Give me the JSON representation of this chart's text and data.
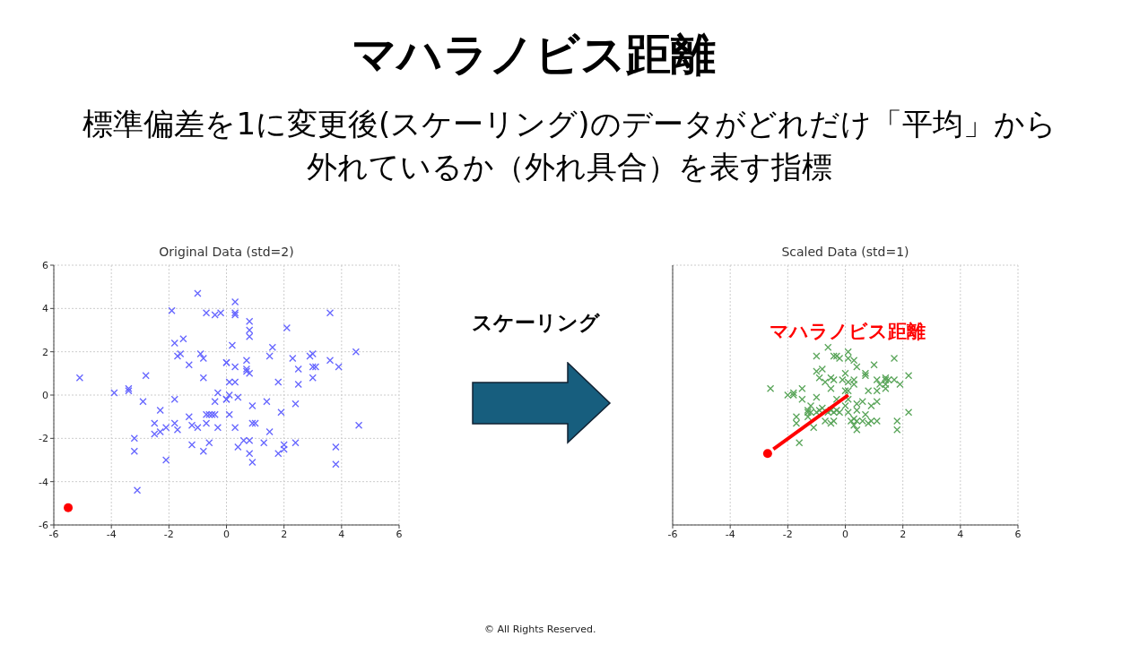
{
  "chart_data": [
    {
      "type": "other",
      "title": "マハラノビス距離",
      "subtitle": "標準偏差を1に変更後(スケーリング)のデータがどれだけ「平均」から外れているか（外れ具合）を表す指標",
      "annotations": [
        "スケーリング",
        "© All Rights Reserved."
      ]
    },
    {
      "type": "scatter",
      "title": "Original Data (std=2)",
      "xlim": [
        -6,
        6
      ],
      "ylim": [
        -6,
        6
      ],
      "xticks": [
        -6,
        -4,
        -2,
        0,
        2,
        4,
        6
      ],
      "yticks": [
        -6,
        -4,
        -2,
        0,
        2,
        4,
        6
      ],
      "grid": true,
      "series": [
        {
          "type": "scatter",
          "marker": "cross",
          "color": "#6666ff",
          "x": [
            -5.1,
            -3.9,
            -3.4,
            -3.4,
            -2.8,
            -2.9,
            -2.3,
            -2.5,
            -2.3,
            -2.5,
            -2.1,
            -3.2,
            -3.2,
            -2.1,
            -3.1,
            -1.0,
            -1.9,
            -0.7,
            -0.4,
            -0.2,
            -1.8,
            -1.5,
            -1.7,
            -1.6,
            -0.9,
            -0.8,
            -1.3,
            -0.8,
            0.0,
            -0.3,
            -0.4,
            0.0,
            -1.8,
            -1.3,
            -0.7,
            -0.6,
            -0.5,
            -0.4,
            -0.7,
            -1.8,
            -1.7,
            -1.2,
            -1.0,
            -0.3,
            -1.2,
            -0.6,
            -0.8,
            0.3,
            0.3,
            0.3,
            3.6,
            0.8,
            2.1,
            0.8,
            0.8,
            0.2,
            1.6,
            1.5,
            0.0,
            0.3,
            0.7,
            0.7,
            0.7,
            0.8,
            2.3,
            2.9,
            3.0,
            3.0,
            3.1,
            3.6,
            3.9,
            4.5,
            2.5,
            3.0,
            2.5,
            1.8,
            0.1,
            0.3,
            0.1,
            0.4,
            0.0,
            1.4,
            2.4,
            0.9,
            1.9,
            0.1,
            0.9,
            1.0,
            0.3,
            1.5,
            4.6,
            0.6,
            0.8,
            1.3,
            0.4,
            0.8,
            0.9,
            2.0,
            2.0,
            1.8,
            2.4,
            3.8,
            3.8
          ],
          "values": [
            0.8,
            0.1,
            0.3,
            0.2,
            0.9,
            -0.3,
            -0.7,
            -1.3,
            -1.7,
            -1.8,
            -1.5,
            -2.0,
            -2.6,
            -3.0,
            -4.4,
            4.7,
            3.9,
            3.8,
            3.7,
            3.8,
            2.4,
            2.6,
            1.8,
            1.9,
            1.9,
            1.7,
            1.4,
            0.8,
            1.5,
            0.1,
            -0.3,
            -0.2,
            -0.2,
            -1.0,
            -0.9,
            -0.9,
            -0.9,
            -0.9,
            -1.3,
            -1.3,
            -1.6,
            -1.4,
            -1.5,
            -1.5,
            -2.3,
            -2.2,
            -2.6,
            4.3,
            3.8,
            3.7,
            3.8,
            3.4,
            3.1,
            3.0,
            2.7,
            2.3,
            2.2,
            1.8,
            1.5,
            1.3,
            1.6,
            1.2,
            1.1,
            1.0,
            1.7,
            1.8,
            1.9,
            1.3,
            1.3,
            1.6,
            1.3,
            2.0,
            1.2,
            0.8,
            0.5,
            0.6,
            0.6,
            0.6,
            0.0,
            -0.1,
            -0.2,
            -0.3,
            -0.4,
            -0.5,
            -0.8,
            -0.9,
            -1.3,
            -1.3,
            -1.5,
            -1.7,
            -1.4,
            -2.1,
            -2.1,
            -2.2,
            -2.4,
            -2.7,
            -3.1,
            -2.3,
            -2.5,
            -2.7,
            -2.2,
            -2.4,
            -3.2
          ]
        },
        {
          "type": "scatter",
          "marker": "circle",
          "color": "#ff0000",
          "x": [
            -5.5
          ],
          "values": [
            -5.2
          ]
        }
      ]
    },
    {
      "type": "scatter",
      "title": "Scaled Data (std=1)",
      "xlim": [
        -6,
        6
      ],
      "ylim": [
        -6,
        6
      ],
      "xticks": [
        -6,
        -4,
        -2,
        0,
        2,
        4,
        6
      ],
      "yticks": [
        -6,
        -4,
        -2,
        0,
        2,
        4,
        6
      ],
      "grid": true,
      "tick_labels": "x",
      "annotations": [
        "マハラノビス距離"
      ],
      "series": [
        {
          "type": "scatter",
          "marker": "cross",
          "color": "#5aa55a",
          "x": [
            -2.6,
            -2.0,
            -1.8,
            -1.8,
            -1.5,
            -1.5,
            -1.2,
            -1.3,
            -1.3,
            -1.2,
            -1.3,
            -1.7,
            -1.7,
            -1.1,
            -1.6,
            -1.0,
            -0.9,
            -1.0,
            -0.8,
            -0.7,
            -0.5,
            -0.4,
            -0.6,
            -0.5,
            -0.4,
            -0.3,
            -0.2,
            -0.3,
            -0.5,
            -0.6,
            -1.0,
            -0.4,
            -0.2,
            -0.3,
            0.1,
            0.1,
            -0.8,
            -1.0,
            -0.9,
            -0.7,
            -0.5,
            -0.4,
            0.0,
            -0.1,
            0.1,
            0.3,
            0.4,
            0.3,
            0.3,
            0.0,
            0.1,
            0.1,
            0.0,
            0.1,
            0.4,
            0.4,
            0.4,
            0.3,
            0.2,
            0.4,
            0.3,
            0.6,
            0.7,
            0.6,
            0.9,
            0.8,
            0.9,
            1.1,
            1.1,
            0.8,
            1.0,
            0.7,
            0.7,
            1.1,
            1.2,
            1.1,
            1.4,
            1.5,
            1.4,
            1.4,
            1.4,
            1.7,
            1.9,
            1.7,
            2.2,
            2.2,
            1.8,
            1.8
          ],
          "values": [
            0.3,
            0.0,
            0.0,
            0.1,
            0.3,
            -0.2,
            -0.5,
            -0.7,
            -0.8,
            -0.8,
            -1.0,
            -1.0,
            -1.3,
            -1.5,
            -2.2,
            -0.8,
            -0.7,
            -0.1,
            -0.6,
            -1.2,
            -1.3,
            -1.2,
            -0.8,
            -0.7,
            -0.8,
            -0.7,
            -0.8,
            -0.2,
            0.3,
            2.2,
            1.8,
            1.8,
            1.7,
            1.8,
            2.0,
            1.7,
            1.2,
            1.1,
            0.8,
            0.6,
            0.8,
            0.7,
            1.0,
            0.7,
            0.6,
            1.6,
            1.3,
            0.7,
            0.5,
            0.2,
            0.2,
            -0.2,
            -0.5,
            -0.8,
            -0.4,
            -0.7,
            -1.2,
            -1.1,
            -1.2,
            -1.6,
            -1.4,
            -0.3,
            -0.9,
            -1.2,
            -0.5,
            -1.3,
            -1.2,
            -1.2,
            -0.3,
            0.2,
            1.4,
            0.9,
            1.0,
            0.7,
            0.5,
            0.2,
            0.8,
            0.7,
            0.5,
            0.3,
            0.7,
            0.7,
            0.5,
            1.7,
            0.9,
            -0.8,
            -1.2,
            -1.6
          ]
        },
        {
          "type": "line",
          "color": "#ff0000",
          "x": [
            -2.5,
            0.1
          ],
          "values": [
            -2.5,
            0.0
          ]
        },
        {
          "type": "scatter",
          "marker": "circle",
          "color": "#ff0000",
          "x": [
            -2.7
          ],
          "values": [
            -2.7
          ]
        }
      ]
    }
  ]
}
